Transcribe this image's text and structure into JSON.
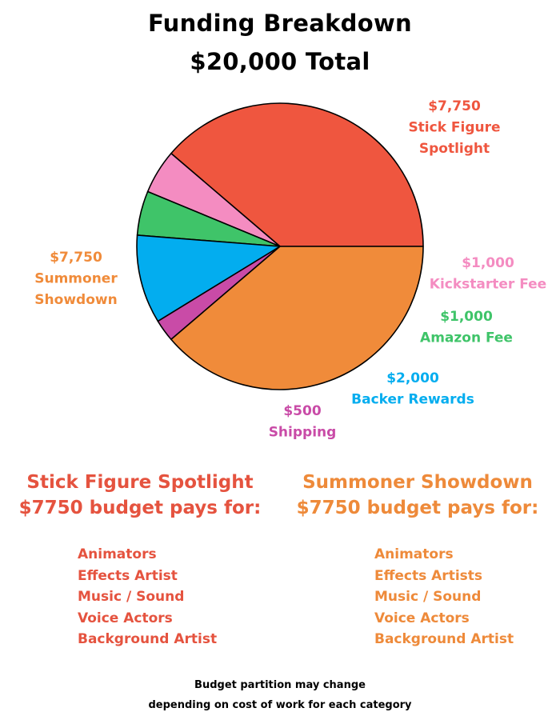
{
  "title": "Funding Breakdown",
  "subtitle": "$20,000 Total",
  "chart_data": {
    "type": "pie",
    "total": 20000,
    "slices": [
      {
        "name": "Stick Figure Spotlight",
        "value": 7750,
        "label_value": "$7,750",
        "label_lines": [
          "Stick Figure",
          "Spotlight"
        ],
        "color": "#ef563f"
      },
      {
        "name": "Kickstarter Fee",
        "value": 1000,
        "label_value": "$1,000",
        "label_lines": [
          "Kickstarter Fee"
        ],
        "color": "#f48cc1"
      },
      {
        "name": "Amazon Fee",
        "value": 1000,
        "label_value": "$1,000",
        "label_lines": [
          "Amazon Fee"
        ],
        "color": "#3fc469"
      },
      {
        "name": "Backer Rewards",
        "value": 2000,
        "label_value": "$2,000",
        "label_lines": [
          "Backer Rewards"
        ],
        "color": "#03adef"
      },
      {
        "name": "Shipping",
        "value": 500,
        "label_value": "$500",
        "label_lines": [
          "Shipping"
        ],
        "color": "#c94ba7"
      },
      {
        "name": "Summoner Showdown",
        "value": 7750,
        "label_value": "$7,750",
        "label_lines": [
          "Summoner",
          "Showdown"
        ],
        "color": "#f08b3a"
      }
    ]
  },
  "sections": {
    "left": {
      "heading_line1": "Stick Figure Spotlight",
      "heading_line2": "$7750 budget pays for:",
      "color": "#e5533f",
      "items": [
        "Animators",
        "Effects Artist",
        "Music / Sound",
        "Voice Actors",
        "Background Artist"
      ]
    },
    "right": {
      "heading_line1": "Summoner Showdown",
      "heading_line2": "$7750 budget pays for:",
      "color": "#ee8a3a",
      "items": [
        "Animators",
        "Effects Artists",
        "Music / Sound",
        "Voice Actors",
        "Background Artist"
      ]
    }
  },
  "footer": {
    "line1": "Budget partition may change",
    "line2": "depending on cost of work for each category"
  }
}
